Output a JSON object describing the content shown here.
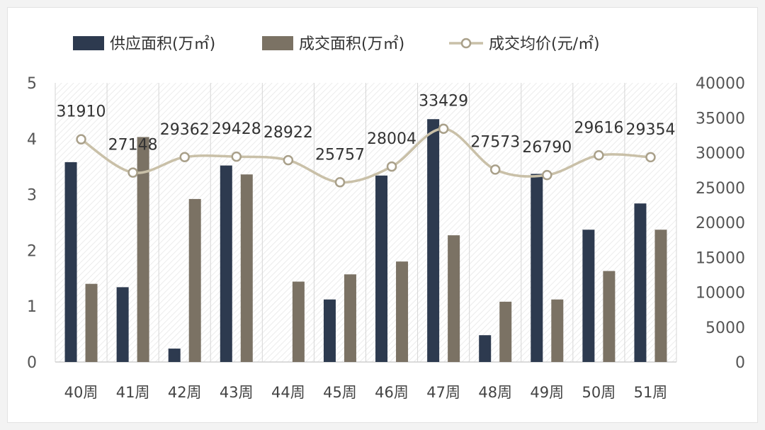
{
  "chart_data": {
    "type": "bar",
    "categories": [
      "40周",
      "41周",
      "42周",
      "43周",
      "44周",
      "45周",
      "46周",
      "47周",
      "48周",
      "49周",
      "50周",
      "51周"
    ],
    "series": [
      {
        "name": "供应面积(万㎡)",
        "kind": "bar",
        "axis": "left",
        "color": "#2d3a4f",
        "values": [
          3.58,
          1.34,
          0.24,
          3.52,
          0,
          1.12,
          3.34,
          4.35,
          0.48,
          3.37,
          2.37,
          2.84
        ]
      },
      {
        "name": "成交面积(万㎡)",
        "kind": "bar",
        "axis": "left",
        "color": "#7b7264",
        "values": [
          1.4,
          4.03,
          2.92,
          3.36,
          1.44,
          1.57,
          1.8,
          2.27,
          1.08,
          1.12,
          1.63,
          2.37
        ]
      },
      {
        "name": "成交均价(元/㎡)",
        "kind": "line",
        "axis": "right",
        "color": "#c9c0a8",
        "values": [
          31910,
          27148,
          29362,
          29428,
          28922,
          25757,
          28004,
          33429,
          27573,
          26790,
          29616,
          29354
        ]
      }
    ],
    "y_left": {
      "min": 0,
      "max": 5,
      "ticks": [
        "0",
        "1",
        "2",
        "3",
        "4",
        "5"
      ]
    },
    "y_right": {
      "min": 0,
      "max": 40000,
      "ticks": [
        "0",
        "5000",
        "10000",
        "15000",
        "20000",
        "25000",
        "30000",
        "35000",
        "40000"
      ]
    },
    "data_labels": [
      "31910",
      "27148",
      "29362",
      "29428",
      "28922",
      "25757",
      "28004",
      "33429",
      "27573",
      "26790",
      "29616",
      "29354"
    ],
    "legend_position": "top",
    "grid": false
  }
}
